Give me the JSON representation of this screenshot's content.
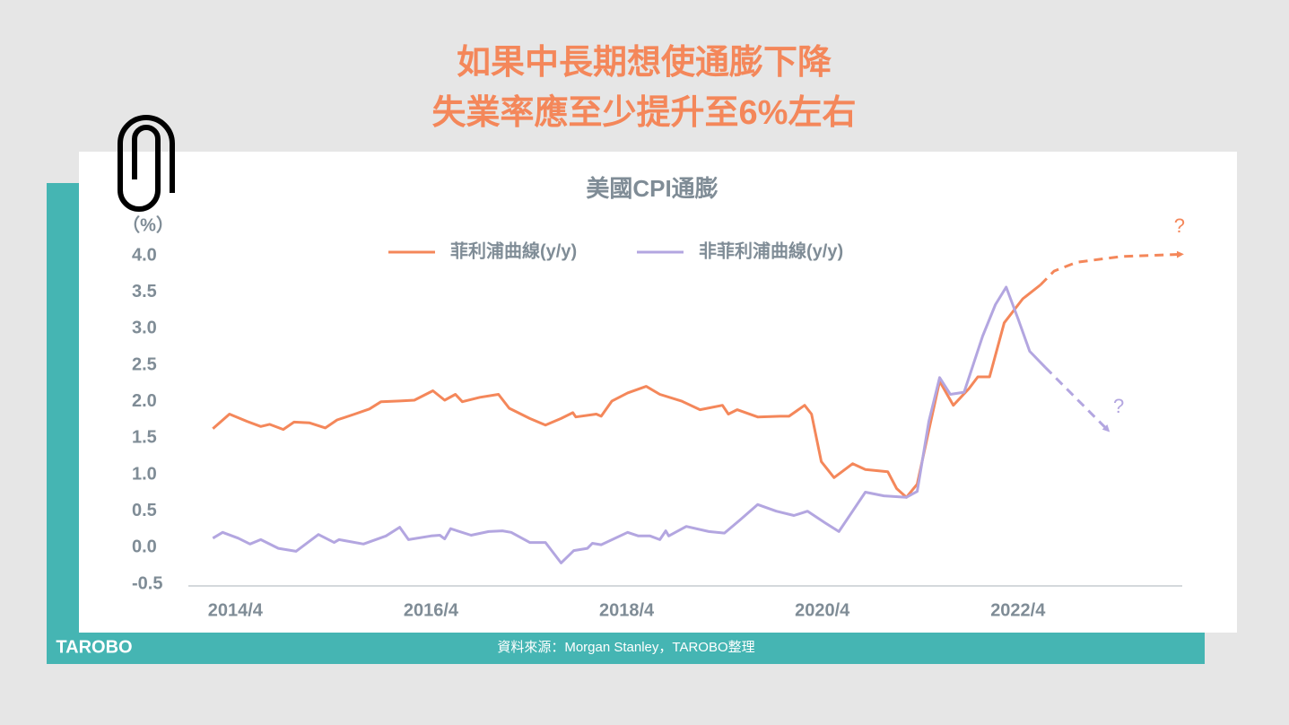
{
  "title": [
    "如果中長期想使通膨下降",
    "失業率應至少提升至6%左右"
  ],
  "source": "資料來源：Morgan Stanley，TAROBO整理",
  "logo": "TAROBO",
  "chart_data": {
    "type": "line",
    "title": "美國CPI通膨",
    "y_label": "（%）",
    "ylim": [
      -0.5,
      4.0
    ],
    "yticks": [
      {
        "value": 4.0,
        "label": "4.0"
      },
      {
        "value": 3.5,
        "label": "3.5"
      },
      {
        "value": 3.0,
        "label": "3.0"
      },
      {
        "value": 2.5,
        "label": "2.5"
      },
      {
        "value": 2.0,
        "label": "2.0"
      },
      {
        "value": 1.5,
        "label": "1.5"
      },
      {
        "value": 1.0,
        "label": "1.0"
      },
      {
        "value": 0.5,
        "label": "0.5"
      },
      {
        "value": 0.0,
        "label": "0.0"
      },
      {
        "value": -0.5,
        "label": "-0.5"
      }
    ],
    "xlim": [
      2013.77,
      2023.93
    ],
    "xticks": [
      {
        "value": 2014.25,
        "label": "2014/4"
      },
      {
        "value": 2016.25,
        "label": "2016/4"
      },
      {
        "value": 2018.25,
        "label": "2018/4"
      },
      {
        "value": 2020.25,
        "label": "2020/4"
      },
      {
        "value": 2022.25,
        "label": "2022/4"
      }
    ],
    "series": [
      {
        "name": "菲利浦曲線(y/y)",
        "color": "#f4875a",
        "x": [
          2014.02,
          2014.19,
          2014.37,
          2014.51,
          2014.6,
          2014.74,
          2014.85,
          2015.01,
          2015.17,
          2015.29,
          2015.47,
          2015.62,
          2015.74,
          2015.93,
          2016.08,
          2016.27,
          2016.39,
          2016.5,
          2016.57,
          2016.75,
          2016.94,
          2017.05,
          2017.26,
          2017.42,
          2017.58,
          2017.7,
          2017.73,
          2017.94,
          2017.99,
          2018.1,
          2018.26,
          2018.45,
          2018.59,
          2018.81,
          2019.0,
          2019.23,
          2019.29,
          2019.38,
          2019.59,
          2019.82,
          2019.91,
          2020.07,
          2020.14,
          2020.24,
          2020.37,
          2020.56,
          2020.69,
          2020.92,
          2021.01,
          2021.11,
          2021.22,
          2021.34,
          2021.45,
          2021.59,
          2021.75,
          2021.84,
          2021.96,
          2022.11,
          2022.3,
          2022.48
        ],
        "values": [
          1.63,
          1.83,
          1.73,
          1.66,
          1.69,
          1.62,
          1.72,
          1.71,
          1.64,
          1.75,
          1.83,
          1.9,
          2.0,
          2.01,
          2.02,
          2.15,
          2.02,
          2.1,
          2.0,
          2.06,
          2.1,
          1.91,
          1.77,
          1.68,
          1.77,
          1.85,
          1.79,
          1.83,
          1.8,
          2.01,
          2.12,
          2.21,
          2.1,
          2.01,
          1.89,
          1.95,
          1.83,
          1.89,
          1.79,
          1.8,
          1.8,
          1.95,
          1.83,
          1.18,
          0.96,
          1.15,
          1.07,
          1.04,
          0.81,
          0.69,
          0.87,
          1.61,
          2.28,
          1.95,
          2.18,
          2.34,
          2.34,
          3.08,
          3.41,
          3.6
        ],
        "projection": {
          "x": [
            2022.62,
            2022.85,
            2023.31,
            2023.92
          ],
          "values": [
            3.79,
            3.91,
            3.99,
            4.02
          ],
          "label": "?"
        }
      },
      {
        "name": "非菲利浦曲線(y/y)",
        "color": "#b3a6e0",
        "x": [
          2014.02,
          2014.12,
          2014.28,
          2014.4,
          2014.51,
          2014.69,
          2014.87,
          2015.1,
          2015.26,
          2015.31,
          2015.56,
          2015.79,
          2015.93,
          2016.02,
          2016.25,
          2016.34,
          2016.39,
          2016.45,
          2016.66,
          2016.84,
          2016.98,
          2017.07,
          2017.26,
          2017.42,
          2017.58,
          2017.71,
          2017.85,
          2017.9,
          2017.99,
          2018.26,
          2018.37,
          2018.49,
          2018.59,
          2018.65,
          2018.68,
          2018.86,
          2019.09,
          2019.25,
          2019.41,
          2019.59,
          2019.78,
          2019.96,
          2020.1,
          2020.28,
          2020.42,
          2020.56,
          2020.69,
          2020.88,
          2021.11,
          2021.22,
          2021.34,
          2021.45,
          2021.56,
          2021.7,
          2021.89,
          2022.02,
          2022.13,
          2022.25,
          2022.37,
          2022.53
        ],
        "values": [
          0.13,
          0.21,
          0.13,
          0.05,
          0.11,
          -0.01,
          -0.05,
          0.18,
          0.07,
          0.11,
          0.05,
          0.16,
          0.28,
          0.11,
          0.16,
          0.17,
          0.12,
          0.26,
          0.17,
          0.22,
          0.23,
          0.21,
          0.07,
          0.07,
          -0.21,
          -0.04,
          -0.01,
          0.06,
          0.04,
          0.21,
          0.16,
          0.16,
          0.11,
          0.23,
          0.16,
          0.29,
          0.22,
          0.2,
          0.38,
          0.59,
          0.5,
          0.44,
          0.5,
          0.34,
          0.22,
          0.5,
          0.76,
          0.71,
          0.69,
          0.77,
          1.73,
          2.33,
          2.1,
          2.13,
          2.9,
          3.33,
          3.57,
          3.14,
          2.69,
          2.47
        ],
        "projection": {
          "x": [
            2022.85,
            2023.17
          ],
          "values": [
            2.04,
            1.61
          ],
          "label": "?"
        }
      }
    ]
  }
}
